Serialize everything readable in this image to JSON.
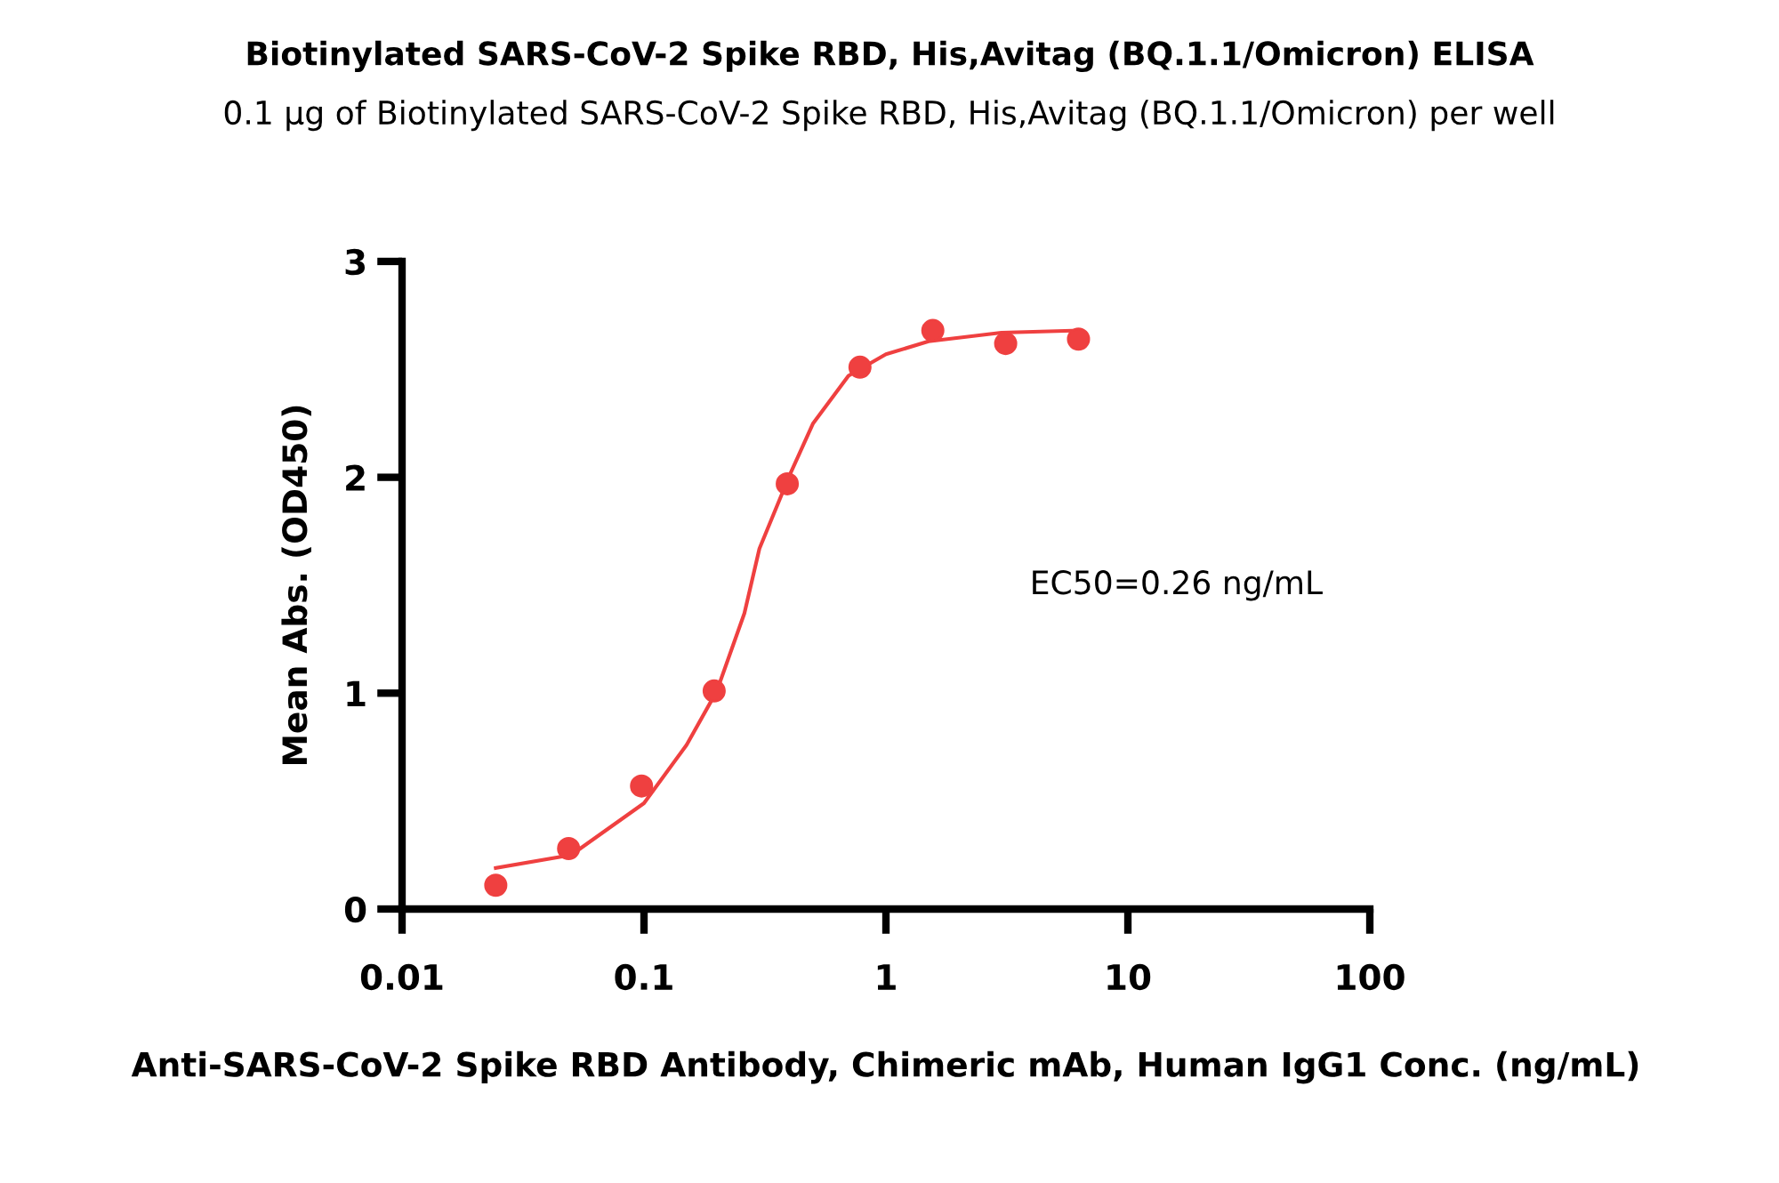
{
  "chart_data": {
    "type": "scatter",
    "title": "Biotinylated SARS-CoV-2 Spike RBD, His,Avitag (BQ.1.1/Omicron) ELISA",
    "subtitle": "0.1 µg of Biotinylated SARS-CoV-2 Spike RBD, His,Avitag (BQ.1.1/Omicron) per well",
    "xlabel": "Anti-SARS-CoV-2 Spike RBD Antibody, Chimeric mAb, Human IgG1 Conc. (ng/mL)",
    "ylabel": "Mean Abs. (OD450)",
    "log": "x",
    "grid": false,
    "legend": false,
    "marker": "circle",
    "x": [
      0.0244,
      0.0488,
      0.0977,
      0.195,
      0.391,
      0.781,
      1.5625,
      3.125,
      6.25
    ],
    "series": [
      {
        "color": "#ef4040",
        "values": [
          0.11,
          0.28,
          0.57,
          1.01,
          1.97,
          2.51,
          2.68,
          2.62,
          2.64
        ]
      },
      {
        "type": "line",
        "color": "#ef4040",
        "line_style": "solid",
        "marker": "none",
        "x": [
          0.0244,
          0.05,
          0.1,
          0.15,
          0.2,
          0.26,
          0.3,
          0.4,
          0.5,
          0.7,
          1,
          1.5,
          3,
          6.25
        ],
        "values": [
          0.19,
          0.25,
          0.49,
          0.76,
          1.01,
          1.37,
          1.67,
          2.01,
          2.25,
          2.47,
          2.57,
          2.63,
          2.67,
          2.68
        ]
      }
    ],
    "xlim": [
      0.01,
      100
    ],
    "xticks": [
      0.01,
      0.1,
      1,
      10,
      100
    ],
    "ylim": [
      0,
      3
    ],
    "yticks": [
      0,
      1,
      2,
      3
    ],
    "annotations": [
      "EC50=0.26 ng/mL"
    ]
  }
}
